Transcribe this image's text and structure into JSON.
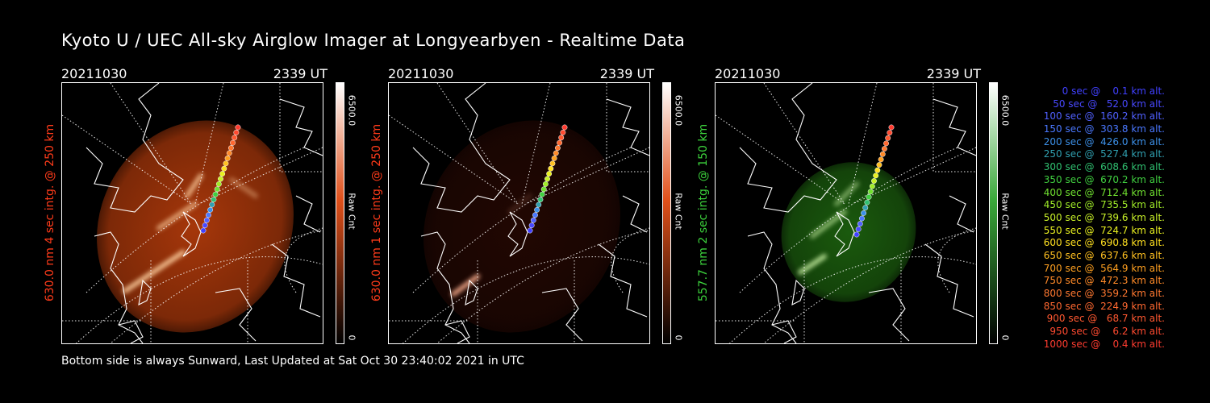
{
  "title": "Kyoto U / UEC All-sky Airglow Imager at Longyearbyen - Realtime Data",
  "footer": "Bottom side is always Sunward, Last Updated at Sat Oct 30 23:40:02 2021 in UTC",
  "panels": [
    {
      "date": "20211030",
      "time": "2339 UT",
      "ylabel": "630.0 nm 4 sec intg. @ 250 km",
      "label_color": "#ff3b1a",
      "colorbar_max": "6500.0",
      "colorbar_unit": "Raw Cnt",
      "colorbar_min": "0",
      "colorbar_top": "#ffffff",
      "colorbar_mid": "#e0501a",
      "colorbar_bottom": "#000000",
      "glow_color": "#c3400c",
      "glow_intensity": 0.85
    },
    {
      "date": "20211030",
      "time": "2339 UT",
      "ylabel": "630.0 nm 1 sec intg. @ 250 km",
      "label_color": "#ff3b1a",
      "colorbar_max": "6500.0",
      "colorbar_unit": "Raw Cnt",
      "colorbar_min": "0",
      "colorbar_top": "#ffffff",
      "colorbar_mid": "#e0501a",
      "colorbar_bottom": "#000000",
      "glow_color": "#4a1005",
      "glow_intensity": 0.45
    },
    {
      "date": "20211030",
      "time": "2339 UT",
      "ylabel": "557.7 nm 2 sec intg. @ 150 km",
      "label_color": "#3cd23c",
      "colorbar_max": "6500.0",
      "colorbar_unit": "Raw Cnt",
      "colorbar_min": "0",
      "colorbar_top": "#ffffff",
      "colorbar_mid": "#3aa83a",
      "colorbar_bottom": "#000000",
      "glow_color": "#1f6a10",
      "glow_intensity": 0.85
    }
  ],
  "legend": [
    {
      "text": "   0 sec @    0.1 km alt.",
      "color": "#4040ff"
    },
    {
      "text": "  50 sec @   52.0 km alt.",
      "color": "#4848ff"
    },
    {
      "text": " 100 sec @  160.2 km alt.",
      "color": "#5060ff"
    },
    {
      "text": " 150 sec @  303.8 km alt.",
      "color": "#4a78ff"
    },
    {
      "text": " 200 sec @  426.0 km alt.",
      "color": "#3c90e8"
    },
    {
      "text": " 250 sec @  527.4 km alt.",
      "color": "#30a0b0"
    },
    {
      "text": " 300 sec @  608.6 km alt.",
      "color": "#30c070"
    },
    {
      "text": " 350 sec @  670.2 km alt.",
      "color": "#40d040"
    },
    {
      "text": " 400 sec @  712.4 km alt.",
      "color": "#70e030"
    },
    {
      "text": " 450 sec @  735.5 km alt.",
      "color": "#a0ec28"
    },
    {
      "text": " 500 sec @  739.6 km alt.",
      "color": "#c8f028"
    },
    {
      "text": " 550 sec @  724.7 km alt.",
      "color": "#e8f020"
    },
    {
      "text": " 600 sec @  690.8 km alt.",
      "color": "#ffe020"
    },
    {
      "text": " 650 sec @  637.6 km alt.",
      "color": "#ffc020"
    },
    {
      "text": " 700 sec @  564.9 km alt.",
      "color": "#ffa020"
    },
    {
      "text": " 750 sec @  472.3 km alt.",
      "color": "#ff8a28"
    },
    {
      "text": " 800 sec @  359.2 km alt.",
      "color": "#ff7830"
    },
    {
      "text": " 850 sec @  224.9 km alt.",
      "color": "#ff6830"
    },
    {
      "text": " 900 sec @   68.7 km alt.",
      "color": "#ff5830"
    },
    {
      "text": " 950 sec @    6.2 km alt.",
      "color": "#ff4a30"
    },
    {
      "text": "1000 sec @    0.4 km alt.",
      "color": "#ff3c30"
    }
  ]
}
